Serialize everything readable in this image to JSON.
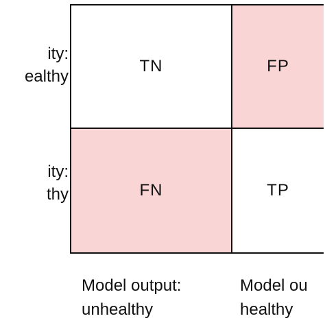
{
  "colors": {
    "correct_cell": "#ffffff",
    "error_cell": "#f9d5d6",
    "border": "#111111"
  },
  "row_labels": [
    {
      "line1": "ity:",
      "line2": "ealthy"
    },
    {
      "line1": "ity:",
      "line2": "thy"
    }
  ],
  "column_labels": [
    {
      "line1": "Model output:",
      "line2": "unhealthy"
    },
    {
      "line1": "Model ou",
      "line2": "healthy"
    }
  ],
  "cells": {
    "tn": "TN",
    "fp": "FP",
    "fn": "FN",
    "tp": "TP"
  }
}
